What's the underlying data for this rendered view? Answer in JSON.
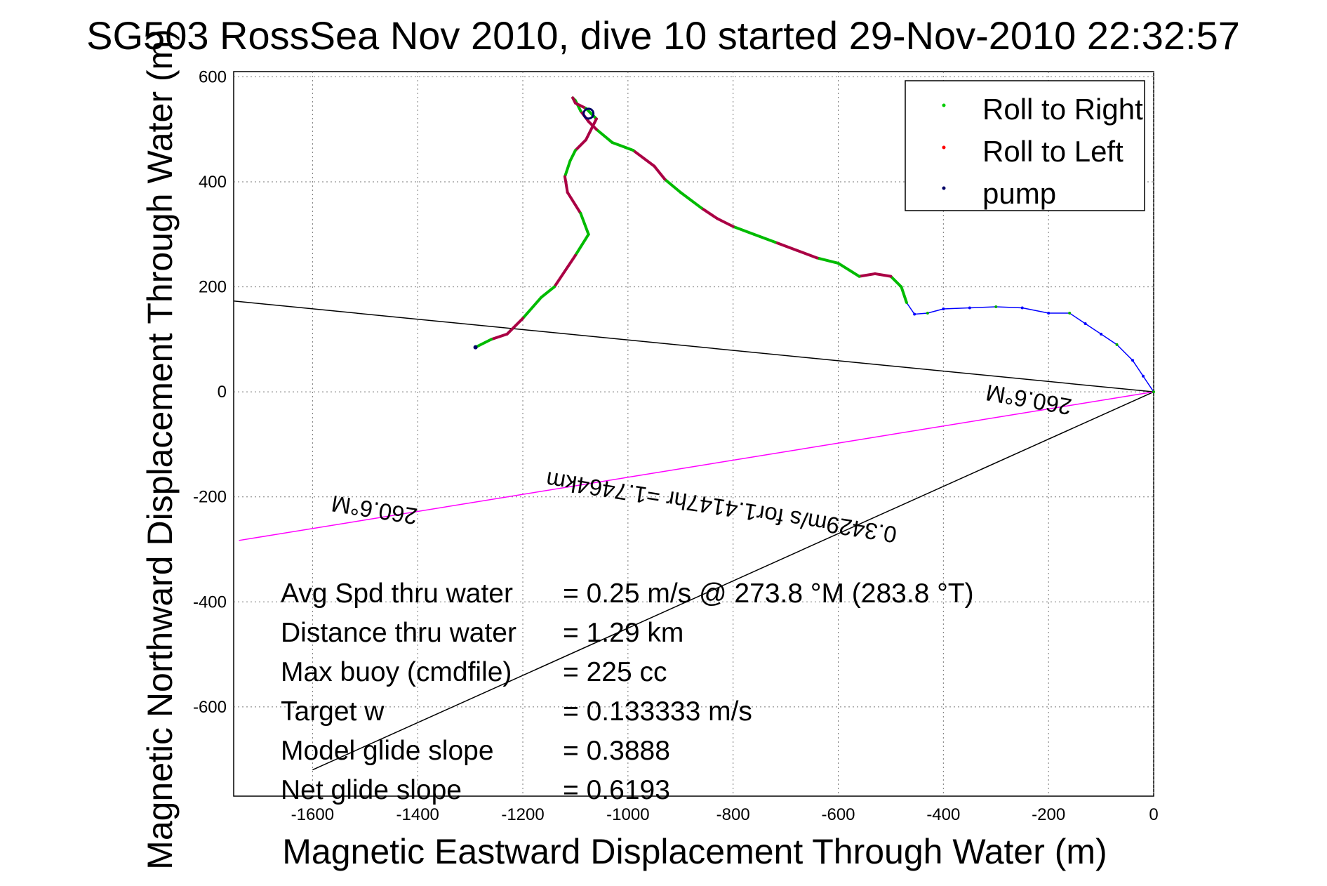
{
  "chart_data": {
    "type": "line",
    "title": "SG503 RossSea Nov 2010, dive 10 started 29-Nov-2010 22:32:57",
    "xlabel": "Magnetic Eastward Displacement Through Water (m)",
    "ylabel": "Magnetic Northward Displacement Through Water (m)",
    "xlim": [
      -1750,
      0
    ],
    "ylim": [
      -770,
      610
    ],
    "xticks": [
      -1600,
      -1400,
      -1200,
      -1000,
      -800,
      -600,
      -400,
      -200,
      0
    ],
    "yticks": [
      -600,
      -400,
      -200,
      0,
      200,
      400,
      600
    ],
    "grid": true,
    "legend_position": "top-right",
    "legend": [
      {
        "label": "Roll to Right",
        "color": "#00cc00"
      },
      {
        "label": "Roll to Left",
        "color": "#ff0000"
      },
      {
        "label": "pump",
        "color": "#000066"
      }
    ],
    "series": [
      {
        "name": "Roll to Right",
        "color": "#00bb00"
      },
      {
        "name": "Roll to Left",
        "color": "#aa0044"
      },
      {
        "name": "pump",
        "color": "#000066"
      }
    ],
    "track": {
      "color": "#0000ff",
      "x": [
        0,
        -20,
        -40,
        -70,
        -100,
        -130,
        -160,
        -200,
        -250,
        -300,
        -350,
        -400,
        -430,
        -455,
        -470,
        -480,
        -500,
        -530,
        -560,
        -600,
        -640,
        -680,
        -720,
        -760,
        -800,
        -830,
        -860,
        -900,
        -930,
        -950,
        -990,
        -1030,
        -1060,
        -1075,
        -1090,
        -1100,
        -1105,
        -1100,
        -1080,
        -1070,
        -1060,
        -1080,
        -1100,
        -1110,
        -1120,
        -1115,
        -1090,
        -1075,
        -1100,
        -1120,
        -1140,
        -1165,
        -1200,
        -1230,
        -1260,
        -1290
      ],
      "y": [
        0,
        30,
        60,
        90,
        110,
        130,
        150,
        150,
        160,
        162,
        160,
        158,
        150,
        148,
        170,
        200,
        220,
        225,
        220,
        245,
        255,
        270,
        285,
        300,
        315,
        330,
        350,
        380,
        405,
        430,
        460,
        475,
        500,
        515,
        535,
        555,
        560,
        550,
        540,
        530,
        520,
        480,
        460,
        440,
        410,
        380,
        340,
        300,
        260,
        230,
        200,
        180,
        140,
        110,
        100,
        85
      ]
    },
    "lines": [
      {
        "name": "heading-line-upper",
        "color": "#000000",
        "x": [
          0,
          -1750
        ],
        "y": [
          0,
          173
        ]
      },
      {
        "name": "heading-line-lower",
        "color": "#000000",
        "x": [
          0,
          -1600
        ],
        "y": [
          0,
          -720
        ]
      },
      {
        "name": "magnetic-heading-line",
        "color": "#ff00ff",
        "x": [
          0,
          -1740
        ],
        "y": [
          0,
          -283
        ]
      }
    ],
    "annotations": [
      {
        "text": "260.6°M",
        "x": -235,
        "y": 0
      },
      {
        "text": "0.3429m/s for1.4147hr =1.7464km",
        "x": -820,
        "y": -205
      },
      {
        "text": "260.6°M",
        "x": -1480,
        "y": -210
      }
    ]
  },
  "stats": [
    {
      "label": "Avg Spd thru water",
      "value": "=  0.25 m/s @ 273.8 °M (283.8 °T)"
    },
    {
      "label": "Distance thru water",
      "value": "=  1.29 km"
    },
    {
      "label": "Max buoy (cmdfile)",
      "value": "= 225 cc"
    },
    {
      "label": "Target w",
      "value": "= 0.133333 m/s"
    },
    {
      "label": "Model glide slope",
      "value": "= 0.3888"
    },
    {
      "label": "Net glide slope",
      "value": "= 0.6193"
    }
  ]
}
